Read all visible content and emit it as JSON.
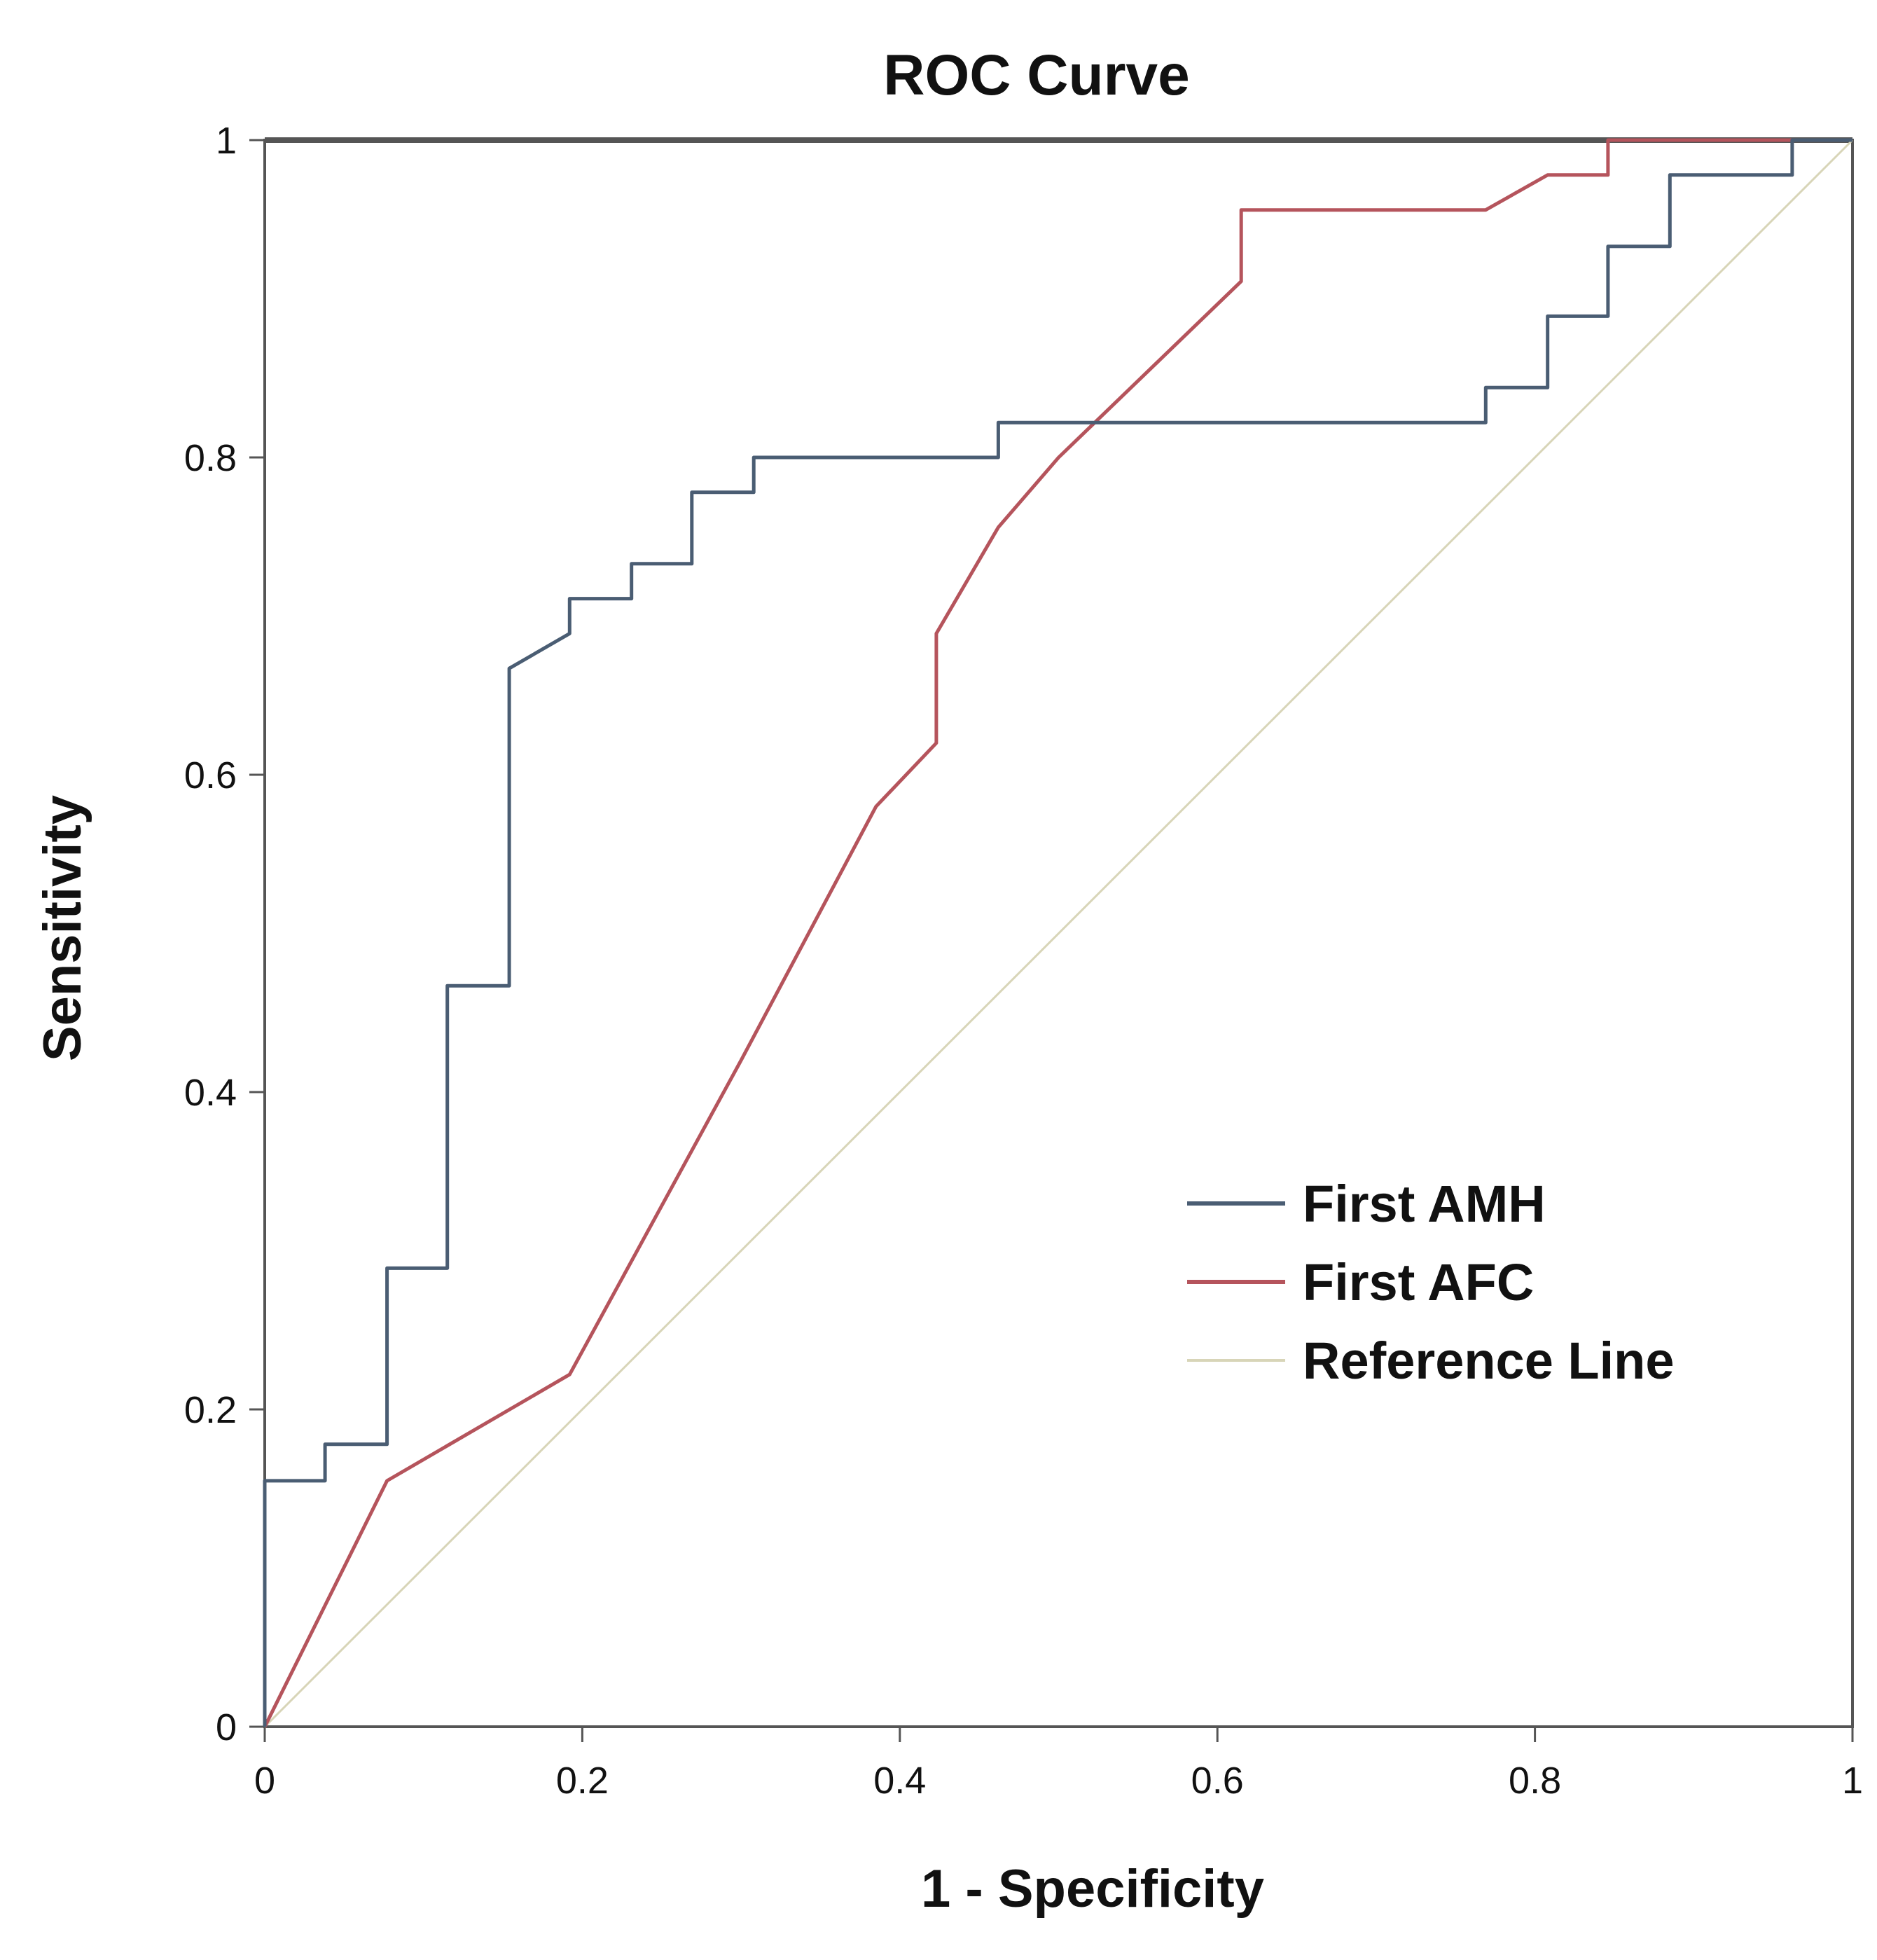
{
  "chart_data": {
    "type": "line",
    "title": "ROC Curve",
    "xlabel": "1 - Specificity",
    "ylabel": "Sensitivity",
    "xlim": [
      0,
      1
    ],
    "ylim": [
      0,
      1
    ],
    "x_ticks": [
      "0",
      "0.2",
      "0.4",
      "0.6",
      "0.8",
      "1"
    ],
    "y_ticks": [
      "0",
      "0.2",
      "0.4",
      "0.6",
      "0.8",
      "1"
    ],
    "grid": false,
    "legend_position": "right-middle",
    "series": [
      {
        "name": "First AMH",
        "color": "#4a5d73",
        "points": [
          [
            0,
            0
          ],
          [
            0,
            0.155
          ],
          [
            0.038,
            0.155
          ],
          [
            0.038,
            0.178
          ],
          [
            0.077,
            0.178
          ],
          [
            0.077,
            0.289
          ],
          [
            0.115,
            0.289
          ],
          [
            0.115,
            0.467
          ],
          [
            0.154,
            0.467
          ],
          [
            0.154,
            0.667
          ],
          [
            0.192,
            0.689
          ],
          [
            0.192,
            0.711
          ],
          [
            0.231,
            0.711
          ],
          [
            0.231,
            0.733
          ],
          [
            0.269,
            0.733
          ],
          [
            0.269,
            0.778
          ],
          [
            0.308,
            0.778
          ],
          [
            0.308,
            0.8
          ],
          [
            0.462,
            0.8
          ],
          [
            0.462,
            0.822
          ],
          [
            0.769,
            0.822
          ],
          [
            0.769,
            0.844
          ],
          [
            0.808,
            0.844
          ],
          [
            0.808,
            0.889
          ],
          [
            0.846,
            0.889
          ],
          [
            0.846,
            0.933
          ],
          [
            0.885,
            0.933
          ],
          [
            0.885,
            0.978
          ],
          [
            0.962,
            0.978
          ],
          [
            0.962,
            1
          ],
          [
            1,
            1
          ]
        ]
      },
      {
        "name": "First AFC",
        "color": "#b5545c",
        "points": [
          [
            0,
            0
          ],
          [
            0.077,
            0.155
          ],
          [
            0.192,
            0.222
          ],
          [
            0.3,
            0.42
          ],
          [
            0.385,
            0.58
          ],
          [
            0.423,
            0.62
          ],
          [
            0.423,
            0.689
          ],
          [
            0.462,
            0.756
          ],
          [
            0.5,
            0.8
          ],
          [
            0.615,
            0.911
          ],
          [
            0.615,
            0.956
          ],
          [
            0.769,
            0.956
          ],
          [
            0.808,
            0.978
          ],
          [
            0.846,
            0.978
          ],
          [
            0.846,
            1
          ],
          [
            1,
            1
          ]
        ]
      },
      {
        "name": "Reference Line",
        "color": "#d8d5b8",
        "points": [
          [
            0,
            0
          ],
          [
            1,
            1
          ]
        ]
      }
    ]
  }
}
